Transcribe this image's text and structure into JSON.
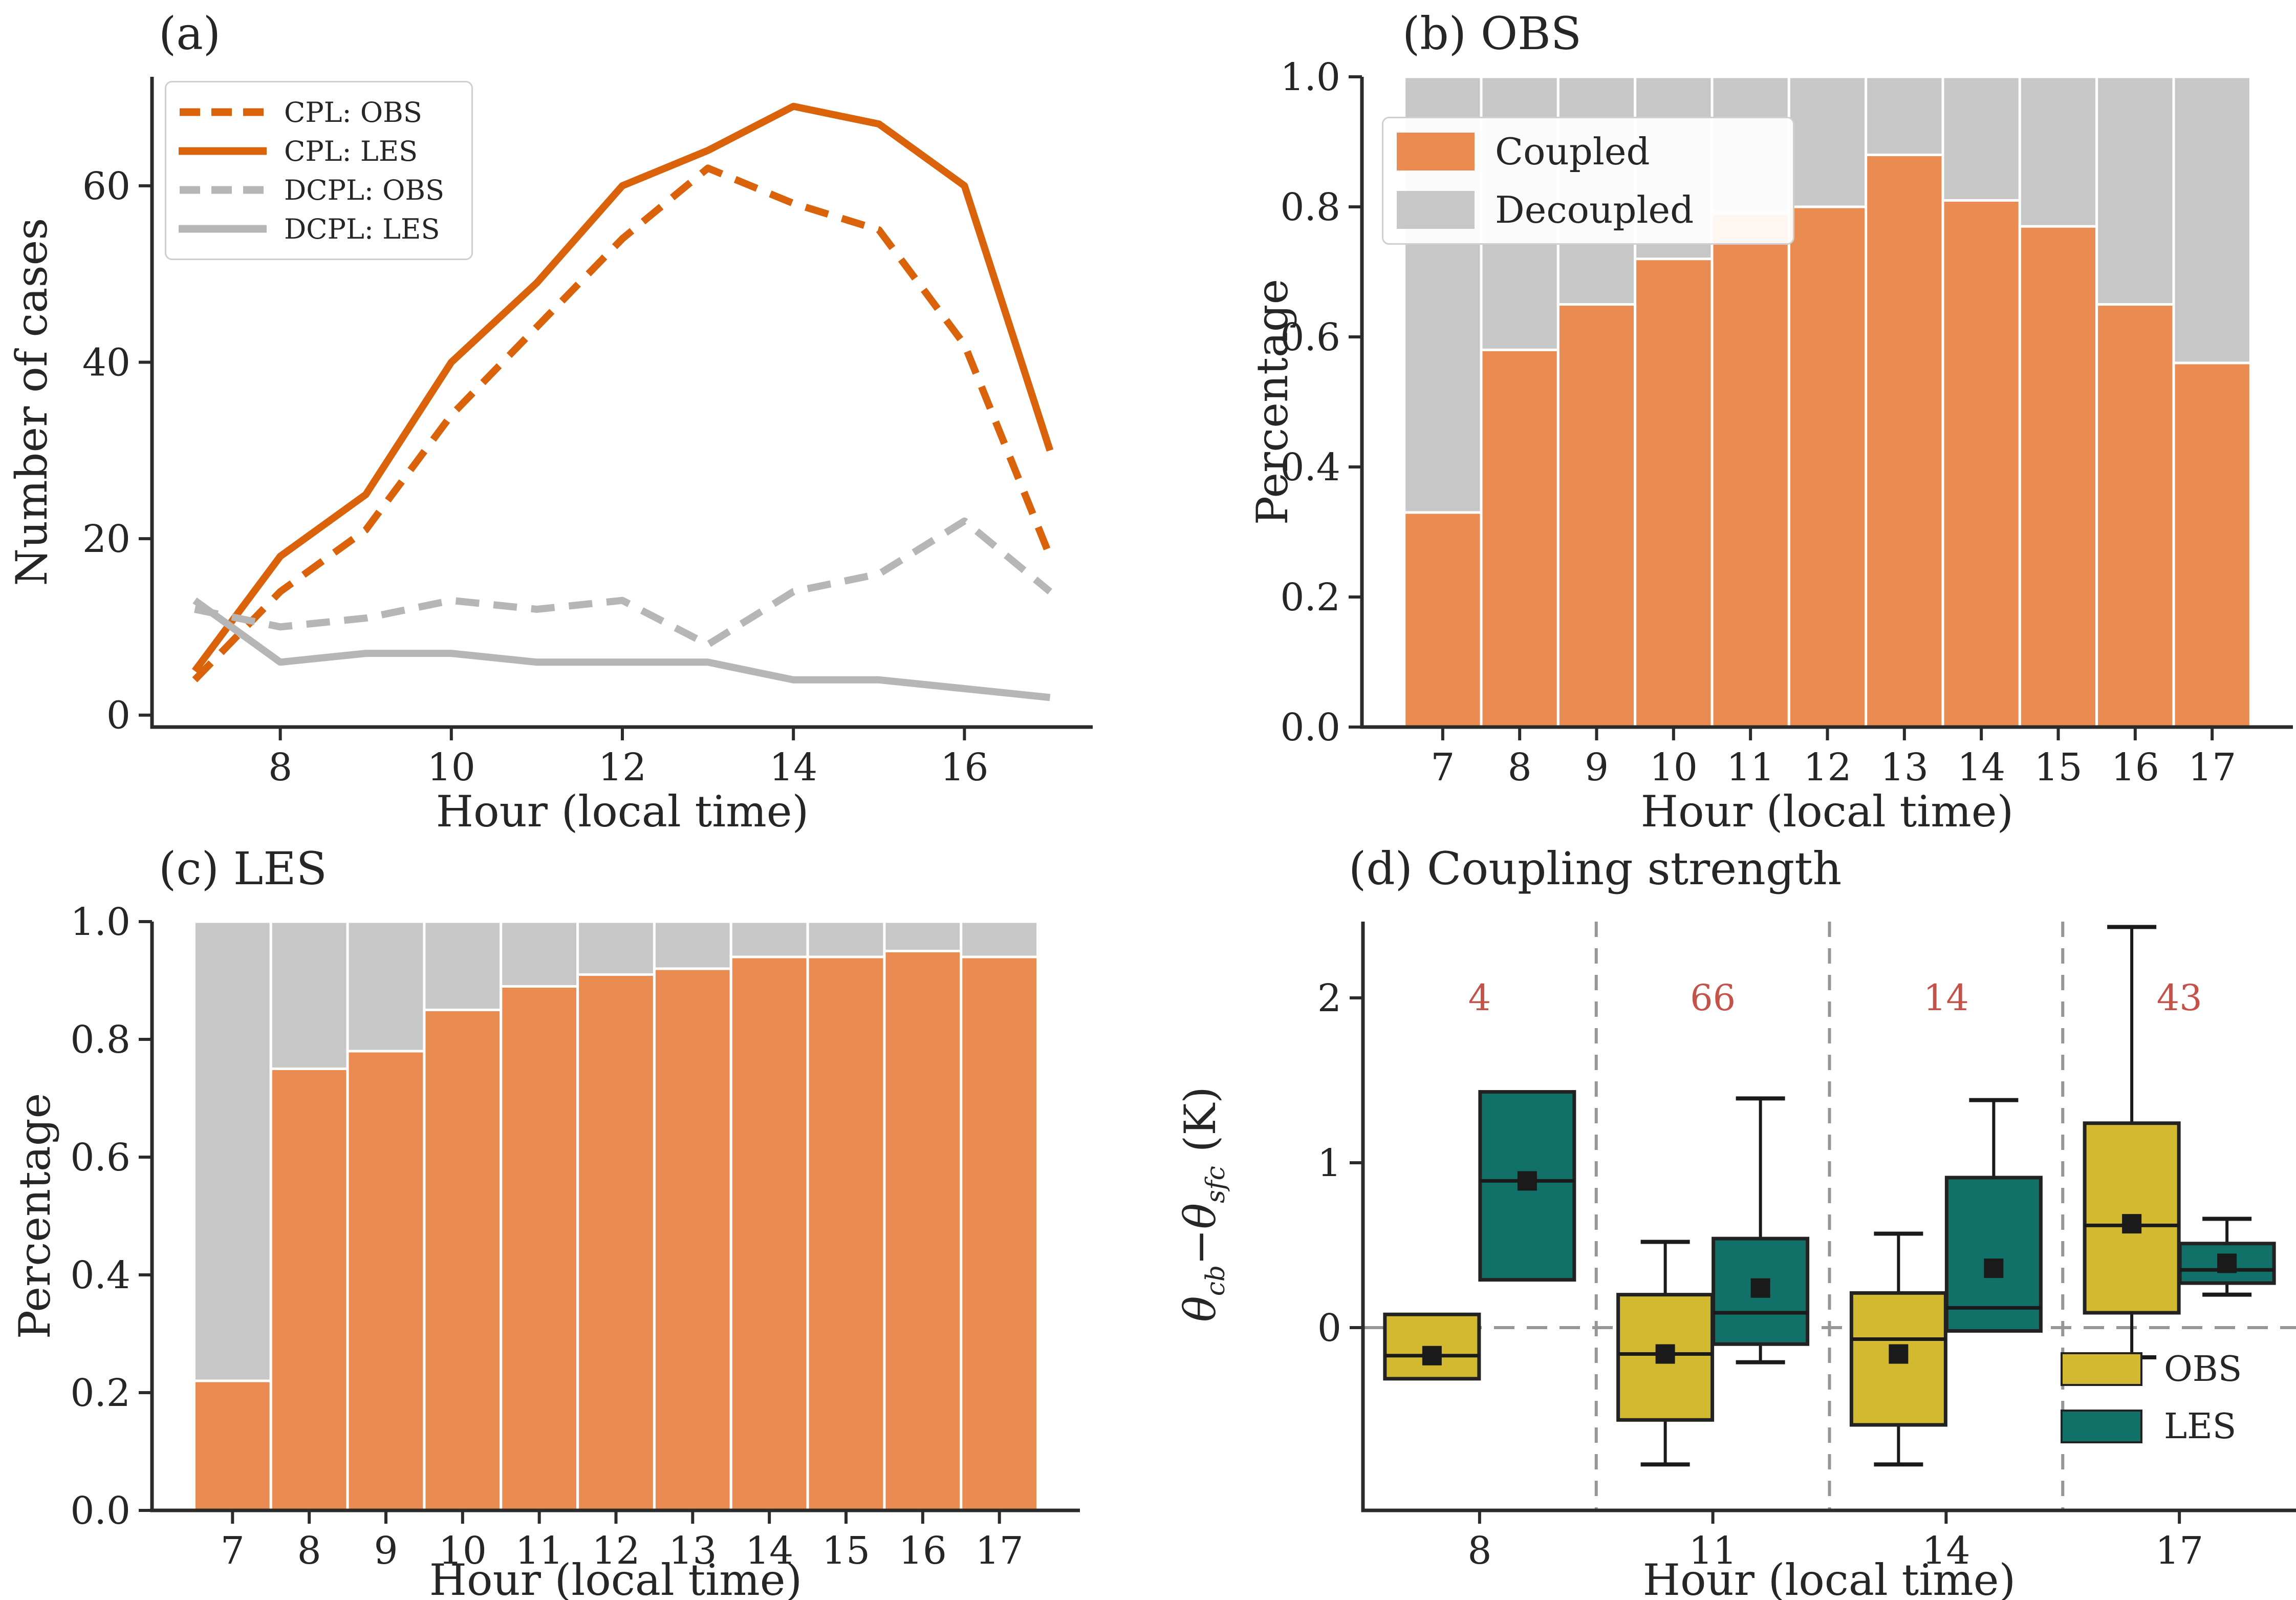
{
  "figure_text": {
    "note": "4-panel matplotlib-style figure"
  },
  "colors": {
    "cpl_orange": "#d9620b",
    "dcpl_gray": "#b6b6b6",
    "bar_orange": "#ea8c51",
    "bar_gray": "#c7c7c7",
    "obs_yellow": "#d3b92f",
    "les_teal": "#117067",
    "count_red": "#c45249",
    "axis": "#2b2b2b",
    "text": "#262626",
    "dashed_guide": "#969696"
  },
  "chart_data": [
    {
      "type": "line",
      "panel": "a",
      "title": "(a)",
      "xlabel": "Hour (local time)",
      "ylabel": "Number of cases",
      "x": [
        7,
        8,
        9,
        10,
        11,
        12,
        13,
        14,
        15,
        16,
        17
      ],
      "xticks": [
        8,
        10,
        12,
        14,
        16
      ],
      "yticks": [
        0,
        20,
        40,
        60
      ],
      "xlim": [
        6.5,
        17.5
      ],
      "ylim": [
        -1.35,
        72.35
      ],
      "legend_position": "upper left",
      "series": [
        {
          "name": "CPL: OBS",
          "color": "#d9620b",
          "dash": true,
          "values": [
            4,
            14,
            21,
            34,
            44,
            54,
            62,
            58,
            55,
            42,
            18
          ]
        },
        {
          "name": "CPL: LES",
          "color": "#d9620b",
          "dash": false,
          "values": [
            5,
            18,
            25,
            40,
            49,
            60,
            64,
            69,
            67,
            60,
            30
          ]
        },
        {
          "name": "DCPL: OBS",
          "color": "#b6b6b6",
          "dash": true,
          "values": [
            12,
            10,
            11,
            13,
            12,
            13,
            8,
            14,
            16,
            22,
            14
          ]
        },
        {
          "name": "DCPL: LES",
          "color": "#b6b6b6",
          "dash": false,
          "values": [
            13,
            6,
            7,
            7,
            6,
            6,
            6,
            4,
            4,
            3,
            2
          ]
        }
      ]
    },
    {
      "type": "bar",
      "stacked": true,
      "panel": "b",
      "title": "(b) OBS",
      "xlabel": "Hour (local time)",
      "ylabel": "Percentage",
      "categories": [
        7,
        8,
        9,
        10,
        11,
        12,
        13,
        14,
        15,
        16,
        17
      ],
      "yticks": [
        "0.0",
        "0.2",
        "0.4",
        "0.6",
        "0.8",
        "1.0"
      ],
      "ylim": [
        0,
        1
      ],
      "legend_position": "upper left",
      "series": [
        {
          "name": "Coupled",
          "color": "#ea8c51",
          "values": [
            0.33,
            0.58,
            0.65,
            0.72,
            0.79,
            0.8,
            0.88,
            0.81,
            0.77,
            0.65,
            0.56
          ]
        },
        {
          "name": "Decoupled",
          "color": "#c7c7c7",
          "values": [
            0.67,
            0.42,
            0.35,
            0.28,
            0.21,
            0.2,
            0.12,
            0.19,
            0.23,
            0.35,
            0.44
          ]
        }
      ]
    },
    {
      "type": "bar",
      "stacked": true,
      "panel": "c",
      "title": "(c) LES",
      "xlabel": "Hour (local time)",
      "ylabel": "Percentage",
      "categories": [
        7,
        8,
        9,
        10,
        11,
        12,
        13,
        14,
        15,
        16,
        17
      ],
      "yticks": [
        "0.0",
        "0.2",
        "0.4",
        "0.6",
        "0.8",
        "1.0"
      ],
      "ylim": [
        0,
        1
      ],
      "legend_position": "none",
      "series": [
        {
          "name": "Coupled",
          "color": "#ea8c51",
          "values": [
            0.22,
            0.75,
            0.78,
            0.85,
            0.89,
            0.91,
            0.92,
            0.94,
            0.94,
            0.95,
            0.94
          ]
        },
        {
          "name": "Decoupled",
          "color": "#c7c7c7",
          "values": [
            0.78,
            0.25,
            0.22,
            0.15,
            0.11,
            0.09,
            0.08,
            0.06,
            0.06,
            0.05,
            0.06
          ]
        }
      ]
    },
    {
      "type": "box",
      "panel": "d",
      "title": "(d) Coupling strength",
      "xlabel": "Hour (local time)",
      "ylabel": "theta_cb - theta_sfc (K)",
      "theta_label": {
        "t1": "θ",
        "s1": "cb",
        "op": "−",
        "t2": "θ",
        "s2": "sfc",
        "unit": " (K)"
      },
      "categories": [
        8,
        11,
        14,
        17
      ],
      "counts": [
        "4",
        "66",
        "14",
        "43"
      ],
      "count_color": "#c45249",
      "count_y_value": 2.0,
      "yticks": [
        0,
        1,
        2
      ],
      "ylim": [
        -1.11,
        2.46
      ],
      "zero_line": 0,
      "legend_position": "lower right",
      "series": [
        {
          "name": "OBS",
          "color": "#d3b92f",
          "boxes": [
            {
              "whislo": -0.31,
              "q1": -0.31,
              "med": -0.17,
              "mean": -0.17,
              "q3": 0.08,
              "whishi": 0.08
            },
            {
              "whislo": -0.83,
              "q1": -0.56,
              "med": -0.16,
              "mean": -0.16,
              "q3": 0.2,
              "whishi": 0.52
            },
            {
              "whislo": -0.83,
              "q1": -0.59,
              "med": -0.07,
              "mean": -0.16,
              "q3": 0.21,
              "whishi": 0.57
            },
            {
              "whislo": -0.18,
              "q1": 0.09,
              "med": 0.62,
              "mean": 0.63,
              "q3": 1.24,
              "whishi": 2.43
            }
          ]
        },
        {
          "name": "LES",
          "color": "#117067",
          "boxes": [
            {
              "whislo": 0.29,
              "q1": 0.29,
              "med": 0.89,
              "mean": 0.89,
              "q3": 1.43,
              "whishi": 1.43
            },
            {
              "whislo": -0.21,
              "q1": -0.1,
              "med": 0.09,
              "mean": 0.24,
              "q3": 0.54,
              "whishi": 1.39
            },
            {
              "whislo": -0.03,
              "q1": -0.02,
              "med": 0.12,
              "mean": 0.36,
              "q3": 0.91,
              "whishi": 1.38
            },
            {
              "whislo": 0.2,
              "q1": 0.27,
              "med": 0.35,
              "mean": 0.39,
              "q3": 0.51,
              "whishi": 0.66
            }
          ]
        }
      ]
    }
  ]
}
